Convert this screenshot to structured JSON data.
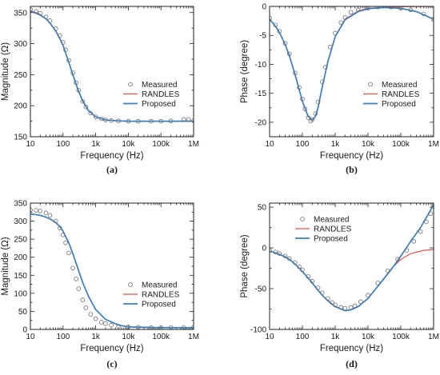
{
  "chart_data": [
    {
      "type": "line",
      "panel_label": "(a)",
      "xlabel": "Frequency (Hz)",
      "ylabel": "Magnitude (Ω)",
      "xscale": "log",
      "xlim": [
        10,
        1000000
      ],
      "ylim": [
        150,
        360
      ],
      "xticks": [
        10,
        100,
        1000,
        10000,
        100000,
        1000000
      ],
      "xtick_labels": [
        "10",
        "100",
        "1k",
        "10k",
        "100k",
        "1M"
      ],
      "yticks": [
        150,
        200,
        250,
        300,
        350
      ],
      "ytick_labels": [
        "150",
        "200",
        "250",
        "300",
        "350"
      ],
      "legend": {
        "position": "center-right"
      },
      "series": [
        {
          "name": "Measured",
          "style": "markers",
          "color": "#6b6b6b",
          "x": [
            10,
            15,
            20,
            30,
            40,
            60,
            80,
            100,
            120,
            150,
            200,
            250,
            300,
            400,
            500,
            700,
            1000,
            1500,
            2000,
            3000,
            5000,
            10000,
            20000,
            50000,
            100000,
            200000,
            500000,
            700000,
            1000000
          ],
          "y": [
            355,
            352,
            349,
            343,
            337,
            324,
            313,
            302,
            290,
            273,
            253,
            237,
            225,
            207,
            198,
            188,
            182,
            179,
            177,
            176,
            175.5,
            175,
            175,
            175,
            175,
            175.5,
            178,
            178,
            176
          ]
        },
        {
          "name": "RANDLES",
          "style": "line",
          "color": "#e8544e",
          "x": [
            10,
            15,
            20,
            30,
            40,
            60,
            80,
            100,
            150,
            200,
            300,
            400,
            600,
            1000,
            2000,
            5000,
            10000,
            100000,
            1000000
          ],
          "y": [
            353,
            350,
            347,
            340,
            333,
            320,
            308,
            297,
            270,
            250,
            223,
            208,
            192,
            182,
            177,
            175.5,
            175,
            175,
            175
          ]
        },
        {
          "name": "Proposed",
          "style": "line",
          "color": "#3a7fc1",
          "x": [
            10,
            15,
            20,
            30,
            40,
            60,
            80,
            100,
            150,
            200,
            300,
            400,
            600,
            1000,
            2000,
            5000,
            10000,
            100000,
            1000000
          ],
          "y": [
            352,
            349,
            346,
            340,
            333,
            320,
            308,
            297,
            270,
            250,
            223,
            208,
            192,
            182,
            177,
            175.5,
            175,
            175,
            175
          ]
        }
      ]
    },
    {
      "type": "line",
      "panel_label": "(b)",
      "xlabel": "Frequency (Hz)",
      "ylabel": "Phase (degree)",
      "xscale": "log",
      "xlim": [
        10,
        1000000
      ],
      "ylim": [
        -22.5,
        0
      ],
      "xticks": [
        10,
        100,
        1000,
        10000,
        100000,
        1000000
      ],
      "xtick_labels": [
        "10",
        "100",
        "1k",
        "10k",
        "100k",
        "1M"
      ],
      "yticks": [
        -20,
        -15,
        -10,
        -5,
        0
      ],
      "ytick_labels": [
        "-20",
        "-15",
        "-10",
        "-5",
        "0"
      ],
      "legend": {
        "position": "center-right"
      },
      "series": [
        {
          "name": "Measured",
          "style": "markers",
          "color": "#6b6b6b",
          "x": [
            10,
            15,
            20,
            30,
            40,
            60,
            80,
            100,
            120,
            150,
            180,
            200,
            250,
            300,
            400,
            500,
            700,
            1000,
            1500,
            2000,
            3000,
            5000,
            10000,
            20000,
            50000,
            100000,
            200000,
            500000,
            1000000
          ],
          "y": [
            -2,
            -3.2,
            -4.3,
            -6.4,
            -8.2,
            -11.5,
            -14.0,
            -16.0,
            -17.7,
            -19.2,
            -19.8,
            -19.5,
            -18.5,
            -16.5,
            -13.0,
            -10.5,
            -7.0,
            -4.6,
            -2.8,
            -1.9,
            -1.0,
            -0.6,
            -0.3,
            -0.1,
            -0.1,
            -0.3,
            -0.6,
            -1.3,
            -2.2
          ]
        },
        {
          "name": "RANDLES",
          "style": "line",
          "color": "#e8544e",
          "x": [
            10,
            15,
            20,
            30,
            40,
            60,
            80,
            100,
            150,
            200,
            250,
            300,
            400,
            600,
            1000,
            2000,
            5000,
            10000,
            100000,
            1000000
          ],
          "y": [
            -2.2,
            -3.4,
            -4.5,
            -6.6,
            -8.5,
            -11.8,
            -14.4,
            -16.4,
            -19.0,
            -19.6,
            -19.0,
            -17.5,
            -14.0,
            -9.5,
            -5.2,
            -2.2,
            -0.8,
            -0.3,
            -0.05,
            0
          ]
        },
        {
          "name": "Proposed",
          "style": "line",
          "color": "#3a7fc1",
          "x": [
            10,
            15,
            20,
            30,
            40,
            60,
            80,
            100,
            150,
            200,
            250,
            300,
            400,
            600,
            1000,
            2000,
            5000,
            10000,
            30000,
            100000,
            300000,
            1000000
          ],
          "y": [
            -2.2,
            -3.4,
            -4.5,
            -6.6,
            -8.5,
            -11.8,
            -14.4,
            -16.4,
            -19.0,
            -19.6,
            -19.0,
            -17.5,
            -14.0,
            -9.5,
            -5.2,
            -2.3,
            -0.9,
            -0.4,
            -0.2,
            -0.35,
            -0.9,
            -2.2
          ]
        }
      ]
    },
    {
      "type": "line",
      "panel_label": "(c)",
      "xlabel": "Frequency (Hz)",
      "ylabel": "Magnitude (Ω)",
      "xscale": "log",
      "xlim": [
        10,
        1000000
      ],
      "ylim": [
        0,
        350
      ],
      "xticks": [
        10,
        100,
        1000,
        10000,
        100000,
        1000000
      ],
      "xtick_labels": [
        "10",
        "100",
        "1k",
        "10k",
        "100k",
        "1M"
      ],
      "yticks": [
        0,
        50,
        100,
        150,
        200,
        250,
        300,
        350
      ],
      "ytick_labels": [
        "0",
        "50",
        "100",
        "150",
        "200",
        "250",
        "300",
        "350"
      ],
      "legend": {
        "position": "lower-right"
      },
      "series": [
        {
          "name": "Measured",
          "style": "markers",
          "color": "#6b6b6b",
          "x": [
            10,
            15,
            20,
            30,
            40,
            60,
            80,
            100,
            120,
            150,
            200,
            250,
            300,
            400,
            500,
            700,
            1000,
            1500,
            2000,
            3000,
            5000,
            10000,
            20000,
            50000,
            100000,
            200000,
            500000,
            1000000
          ],
          "y": [
            331,
            330,
            328,
            323,
            316,
            300,
            281,
            262,
            240,
            212,
            170,
            140,
            113,
            82,
            60,
            42,
            30,
            20,
            16,
            12,
            9,
            7,
            6,
            5,
            5,
            5,
            5,
            6
          ]
        },
        {
          "name": "RANDLES",
          "style": "line",
          "color": "#e8544e",
          "x": [
            10,
            15,
            20,
            30,
            40,
            60,
            80,
            100,
            150,
            200,
            300,
            400,
            600,
            1000,
            2000,
            5000,
            10000,
            100000,
            1000000
          ],
          "y": [
            320,
            318,
            316,
            311,
            306,
            296,
            285,
            272,
            240,
            210,
            163,
            130,
            92,
            55,
            28,
            12,
            7,
            5,
            5
          ]
        },
        {
          "name": "Proposed",
          "style": "line",
          "color": "#3a7fc1",
          "x": [
            10,
            15,
            20,
            30,
            40,
            60,
            80,
            100,
            150,
            200,
            300,
            400,
            600,
            1000,
            2000,
            5000,
            10000,
            100000,
            1000000
          ],
          "y": [
            320,
            318,
            316,
            311,
            306,
            296,
            285,
            272,
            240,
            210,
            163,
            130,
            92,
            55,
            28,
            12,
            7,
            5,
            5
          ]
        }
      ]
    },
    {
      "type": "line",
      "panel_label": "(d)",
      "xlabel": "Frequency (Hz)",
      "ylabel": "Phase (degree)",
      "xscale": "log",
      "xlim": [
        10,
        1000000
      ],
      "ylim": [
        -100,
        55
      ],
      "xticks": [
        10,
        100,
        1000,
        10000,
        100000,
        1000000
      ],
      "xtick_labels": [
        "10",
        "100",
        "1k",
        "10k",
        "100k",
        "1M"
      ],
      "yticks": [
        -100,
        -50,
        0,
        50
      ],
      "ytick_labels": [
        "-100",
        "-50",
        "0",
        "50"
      ],
      "legend": {
        "position": "upper-left"
      },
      "series": [
        {
          "name": "Measured",
          "style": "markers",
          "color": "#6b6b6b",
          "x": [
            10,
            15,
            20,
            30,
            40,
            60,
            80,
            100,
            150,
            200,
            300,
            400,
            600,
            800,
            1000,
            1500,
            2000,
            3000,
            4000,
            6000,
            10000,
            20000,
            40000,
            80000,
            150000,
            250000,
            400000,
            600000,
            800000,
            1000000
          ],
          "y": [
            -3,
            -5,
            -7,
            -10,
            -13,
            -18,
            -23,
            -27,
            -35,
            -41,
            -49,
            -55,
            -62,
            -67,
            -70,
            -73,
            -74,
            -73,
            -71,
            -66,
            -58,
            -43,
            -28,
            -14,
            -3,
            8,
            20,
            32,
            42,
            51
          ]
        },
        {
          "name": "RANDLES",
          "style": "line",
          "color": "#e8544e",
          "x": [
            10,
            15,
            20,
            30,
            40,
            60,
            80,
            100,
            150,
            200,
            300,
            400,
            600,
            1000,
            2000,
            3000,
            5000,
            10000,
            20000,
            50000,
            100000,
            200000,
            500000,
            1000000
          ],
          "y": [
            -4,
            -6,
            -8,
            -11,
            -14,
            -20,
            -25,
            -29,
            -37,
            -43,
            -52,
            -58,
            -65,
            -72,
            -77,
            -76,
            -72,
            -62,
            -47,
            -26,
            -14,
            -7,
            -3,
            -2
          ]
        },
        {
          "name": "Proposed",
          "style": "line",
          "color": "#3a7fc1",
          "x": [
            10,
            15,
            20,
            30,
            40,
            60,
            80,
            100,
            150,
            200,
            300,
            400,
            600,
            1000,
            2000,
            3000,
            5000,
            10000,
            20000,
            50000,
            100000,
            200000,
            400000,
            700000,
            1000000
          ],
          "y": [
            -4,
            -6,
            -8,
            -11,
            -14,
            -20,
            -25,
            -29,
            -37,
            -43,
            -52,
            -58,
            -65,
            -72,
            -77,
            -76,
            -72,
            -62,
            -47,
            -27,
            -10,
            8,
            25,
            42,
            53
          ]
        }
      ]
    }
  ]
}
